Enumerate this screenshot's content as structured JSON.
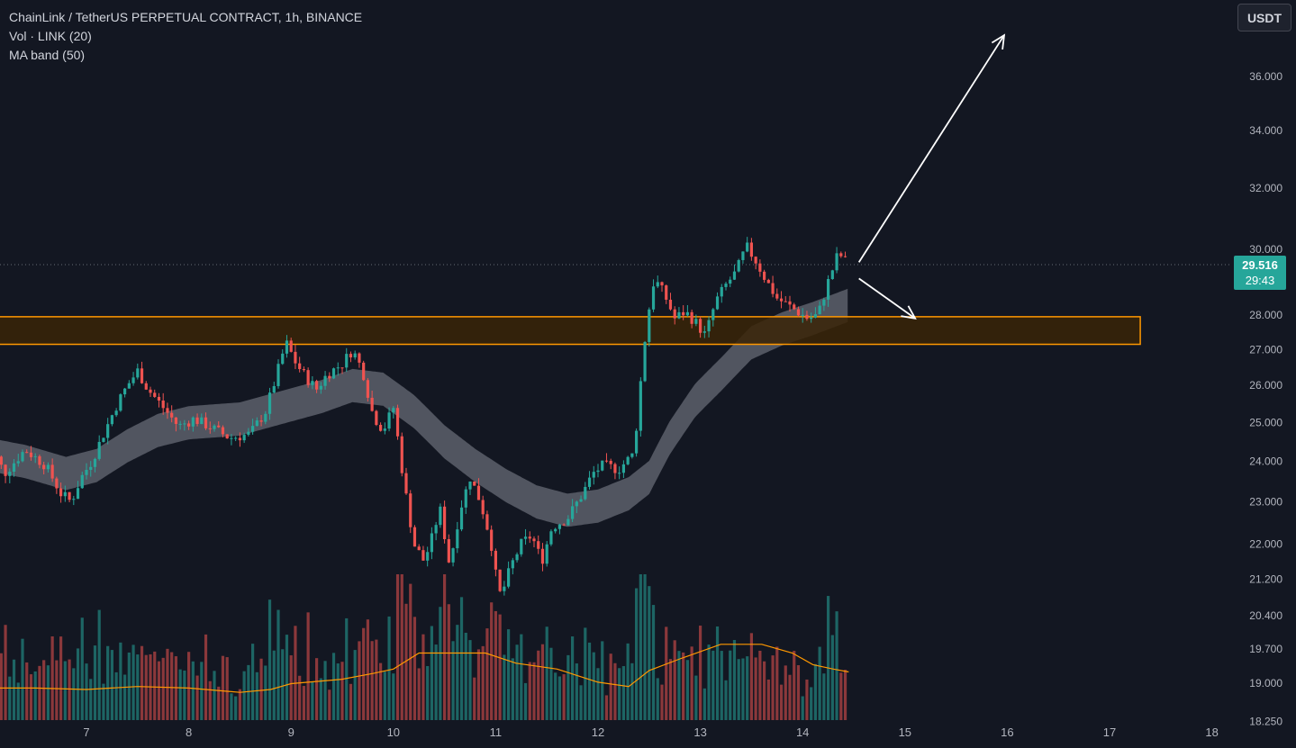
{
  "legend": {
    "title": "ChainLink / TetherUS PERPETUAL CONTRACT, 1h, BINANCE",
    "vol": "Vol · LINK (20)",
    "ma": "MA band (50)"
  },
  "currency_button": "USDT",
  "current_price": {
    "price": "29.516",
    "countdown": "29:43"
  },
  "colors": {
    "background": "#131722",
    "up": "#26a69a",
    "down": "#ef5350",
    "zone_border": "#ff9800",
    "zone_fill": "#3a2507",
    "ma_band": "#5d606b",
    "volume_ma": "#ff9800",
    "price_badge": "#26a69a"
  },
  "chart_data": {
    "type": "candlestick",
    "symbol": "LINKUSDT",
    "timeframe": "1h",
    "exchange": "BINANCE",
    "x_tick_labels": [
      "7",
      "8",
      "9",
      "10",
      "11",
      "12",
      "13",
      "14",
      "15",
      "16",
      "17",
      "18"
    ],
    "y_tick_labels": [
      "36.000",
      "34.000",
      "32.000",
      "30.000",
      "28.000",
      "27.000",
      "26.000",
      "25.000",
      "24.000",
      "23.000",
      "22.000",
      "21.200",
      "20.400",
      "19.700",
      "19.000",
      "18.250"
    ],
    "y_scale": "log",
    "ylim": [
      18.2,
      38.3
    ],
    "last_price": 29.516,
    "price_path": [
      [
        6.0,
        23.9
      ],
      [
        6.1,
        24.2
      ],
      [
        6.2,
        23.7
      ],
      [
        6.4,
        24.3
      ],
      [
        6.6,
        23.9
      ],
      [
        6.75,
        23.2
      ],
      [
        6.85,
        23.0
      ],
      [
        6.95,
        23.6
      ],
      [
        7.05,
        24.0
      ],
      [
        7.15,
        24.6
      ],
      [
        7.3,
        25.5
      ],
      [
        7.4,
        26.0
      ],
      [
        7.5,
        26.4
      ],
      [
        7.6,
        25.9
      ],
      [
        7.75,
        25.4
      ],
      [
        7.9,
        24.9
      ],
      [
        8.05,
        25.1
      ],
      [
        8.2,
        24.9
      ],
      [
        8.4,
        24.6
      ],
      [
        8.6,
        24.7
      ],
      [
        8.75,
        25.3
      ],
      [
        8.85,
        26.2
      ],
      [
        8.95,
        27.2
      ],
      [
        9.05,
        26.6
      ],
      [
        9.15,
        26.2
      ],
      [
        9.25,
        25.9
      ],
      [
        9.35,
        26.3
      ],
      [
        9.5,
        26.6
      ],
      [
        9.6,
        27.0
      ],
      [
        9.7,
        26.4
      ],
      [
        9.8,
        25.2
      ],
      [
        9.9,
        24.8
      ],
      [
        10.0,
        25.4
      ],
      [
        10.1,
        23.5
      ],
      [
        10.2,
        22.0
      ],
      [
        10.3,
        21.6
      ],
      [
        10.4,
        22.3
      ],
      [
        10.45,
        22.9
      ],
      [
        10.5,
        22.2
      ],
      [
        10.55,
        21.5
      ],
      [
        10.65,
        22.8
      ],
      [
        10.75,
        23.6
      ],
      [
        10.85,
        23.0
      ],
      [
        10.95,
        22.1
      ],
      [
        11.0,
        21.3
      ],
      [
        11.05,
        20.8
      ],
      [
        11.15,
        21.5
      ],
      [
        11.25,
        22.0
      ],
      [
        11.35,
        22.2
      ],
      [
        11.45,
        21.6
      ],
      [
        11.55,
        22.4
      ],
      [
        11.7,
        22.6
      ],
      [
        11.85,
        23.2
      ],
      [
        11.95,
        23.7
      ],
      [
        12.05,
        23.9
      ],
      [
        12.2,
        23.8
      ],
      [
        12.35,
        24.2
      ],
      [
        12.4,
        25.6
      ],
      [
        12.45,
        27.1
      ],
      [
        12.5,
        28.2
      ],
      [
        12.55,
        29.1
      ],
      [
        12.65,
        28.6
      ],
      [
        12.75,
        27.9
      ],
      [
        12.85,
        28.1
      ],
      [
        12.95,
        27.8
      ],
      [
        13.05,
        27.4
      ],
      [
        13.15,
        28.4
      ],
      [
        13.25,
        28.9
      ],
      [
        13.35,
        29.3
      ],
      [
        13.45,
        30.1
      ],
      [
        13.55,
        29.6
      ],
      [
        13.65,
        29.0
      ],
      [
        13.75,
        28.5
      ],
      [
        13.85,
        28.3
      ],
      [
        13.95,
        28.1
      ],
      [
        14.05,
        27.9
      ],
      [
        14.15,
        28.0
      ],
      [
        14.25,
        29.0
      ],
      [
        14.35,
        29.9
      ],
      [
        14.45,
        29.516
      ]
    ],
    "ma_band": [
      [
        6.0,
        24.2
      ],
      [
        6.4,
        24.0
      ],
      [
        6.8,
        23.7
      ],
      [
        7.1,
        23.9
      ],
      [
        7.4,
        24.4
      ],
      [
        7.7,
        24.8
      ],
      [
        8.0,
        25.0
      ],
      [
        8.5,
        25.1
      ],
      [
        8.9,
        25.4
      ],
      [
        9.3,
        25.7
      ],
      [
        9.6,
        26.0
      ],
      [
        9.9,
        25.9
      ],
      [
        10.2,
        25.3
      ],
      [
        10.5,
        24.5
      ],
      [
        10.8,
        23.9
      ],
      [
        11.1,
        23.4
      ],
      [
        11.4,
        23.0
      ],
      [
        11.7,
        22.8
      ],
      [
        12.0,
        22.9
      ],
      [
        12.3,
        23.2
      ],
      [
        12.5,
        23.6
      ],
      [
        12.7,
        24.6
      ],
      [
        12.95,
        25.6
      ],
      [
        13.2,
        26.3
      ],
      [
        13.5,
        27.2
      ],
      [
        13.8,
        27.6
      ],
      [
        14.1,
        27.9
      ],
      [
        14.45,
        28.3
      ]
    ],
    "ma_band_width": 0.035,
    "volume": {
      "ylim": [
        0,
        1
      ],
      "ma": [
        [
          6.0,
          0.22
        ],
        [
          6.5,
          0.22
        ],
        [
          7.0,
          0.21
        ],
        [
          7.5,
          0.23
        ],
        [
          8.0,
          0.22
        ],
        [
          8.5,
          0.19
        ],
        [
          8.8,
          0.21
        ],
        [
          9.0,
          0.25
        ],
        [
          9.5,
          0.28
        ],
        [
          9.8,
          0.32
        ],
        [
          10.0,
          0.35
        ],
        [
          10.25,
          0.46
        ],
        [
          10.5,
          0.46
        ],
        [
          10.9,
          0.46
        ],
        [
          11.2,
          0.39
        ],
        [
          11.6,
          0.35
        ],
        [
          12.0,
          0.26
        ],
        [
          12.3,
          0.23
        ],
        [
          12.5,
          0.34
        ],
        [
          12.8,
          0.42
        ],
        [
          13.2,
          0.52
        ],
        [
          13.6,
          0.52
        ],
        [
          13.9,
          0.46
        ],
        [
          14.1,
          0.38
        ],
        [
          14.3,
          0.35
        ],
        [
          14.45,
          0.33
        ]
      ]
    },
    "zone": {
      "price_low": 27.15,
      "price_high": 27.95,
      "x_start": 6.0,
      "x_end": 17.3
    },
    "arrows": [
      {
        "from": [
          14.55,
          29.6
        ],
        "to": [
          15.97,
          37.6
        ]
      },
      {
        "from": [
          14.55,
          29.1
        ],
        "to": [
          15.1,
          27.9
        ]
      }
    ]
  }
}
